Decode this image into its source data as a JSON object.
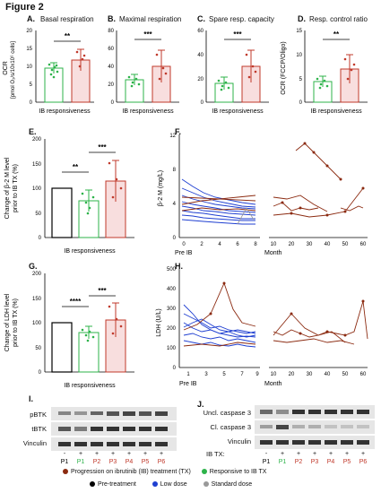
{
  "figure_title": "Figure 2",
  "colors": {
    "green": "#2db34a",
    "red": "#c0392b",
    "black": "#000000",
    "blue": "#1f3fd1",
    "gray": "#999999",
    "darkred": "#8b2a10"
  },
  "panels": {
    "A": {
      "letter": "A.",
      "title": "Basal respiration",
      "sig": "**"
    },
    "B": {
      "letter": "B.",
      "title": "Maximal respiration",
      "sig": "***"
    },
    "C": {
      "letter": "C.",
      "title": "Spare resp. capacity",
      "sig": "***"
    },
    "D": {
      "letter": "D.",
      "title": "Resp. control ratio",
      "sig": "**"
    },
    "E": {
      "letter": "E.",
      "sig1": "**",
      "sig2": "***"
    },
    "F": {
      "letter": "F."
    },
    "G": {
      "letter": "G.",
      "sig1": "****",
      "sig2": "***"
    },
    "H": {
      "letter": "H."
    },
    "I": {
      "letter": "I."
    },
    "J": {
      "letter": "J."
    }
  },
  "axis_labels": {
    "ocr_line1": "OCR",
    "ocr_line2": "[pmol O₂/s/10x10⁶ cells]",
    "ocr_ratio": "OCR (FCCP/Oligo)",
    "ib_responsiveness": "IB responsiveness",
    "b2m_change_1": "Change of β-2 M level",
    "b2m_change_2": "prior to IB TX (%)",
    "b2m_level": "β-2 M (mg/L)",
    "ldh_change_1": "Change of LDH level",
    "ldh_change_2": "prior to IB TX (%)",
    "ldh_level": "LDH (U/L)",
    "pre_ib": "Pre IB",
    "month": "Month"
  },
  "ticks": {
    "A_y": [
      "0",
      "5",
      "10",
      "15",
      "20"
    ],
    "B_y": [
      "0",
      "20",
      "40",
      "60",
      "80"
    ],
    "C_y": [
      "0",
      "20",
      "40",
      "60"
    ],
    "D_y": [
      "0",
      "5",
      "10",
      "15"
    ],
    "EG_y": [
      "0",
      "50",
      "100",
      "150",
      "200"
    ],
    "F_y": [
      "0",
      "4",
      "8",
      "12"
    ],
    "F_x_left": [
      "0",
      "2",
      "4",
      "6",
      "8"
    ],
    "F_x_right": [
      "10",
      "20",
      "30",
      "40",
      "50",
      "60"
    ],
    "H_y": [
      "0",
      "100",
      "200",
      "300",
      "400",
      "500"
    ],
    "H_x_left": [
      "1",
      "3",
      "5",
      "7",
      "9"
    ],
    "H_x_right": [
      "10",
      "20",
      "30",
      "40",
      "50",
      "60"
    ]
  },
  "blots": {
    "I_rows": [
      "pBTK",
      "tBTK",
      "Vinculin"
    ],
    "J_rows": [
      "Uncl. caspase 3",
      "Cl. caspase 3",
      "Vinculin"
    ],
    "ib_tx_label": "IB TX:",
    "I_tx": [
      "-",
      "+",
      "+",
      "+",
      "+",
      "+",
      "+"
    ],
    "J_tx": [
      "-",
      "+",
      "+",
      "+",
      "+",
      "+",
      "+"
    ],
    "lanes": [
      "P1",
      "P1",
      "P2",
      "P3",
      "P4",
      "P5",
      "P6"
    ]
  },
  "legend": {
    "progression": "Progression on ibrutinib (IB) treatment (TX)",
    "responsive": "Responsive to IB TX",
    "pretreatment": "Pre-treatment",
    "low_dose": "Low dose",
    "standard_dose": "Standard dose"
  },
  "chart_data": [
    {
      "panel": "A",
      "type": "bar",
      "title": "Basal respiration",
      "xlabel": "IB responsiveness",
      "ylabel": "OCR [pmol O₂/s/10x10⁶ cells]",
      "ylim": [
        0,
        20
      ],
      "categories": [
        "Responsive to IB TX",
        "Progression on IB TX"
      ],
      "values": [
        9.5,
        11.8
      ],
      "errors": [
        1.5,
        3.0
      ]
    },
    {
      "panel": "B",
      "type": "bar",
      "title": "Maximal respiration",
      "xlabel": "IB responsiveness",
      "ylim": [
        0,
        80
      ],
      "categories": [
        "Responsive to IB TX",
        "Progression on IB TX"
      ],
      "values": [
        25,
        40
      ],
      "errors": [
        6,
        18
      ]
    },
    {
      "panel": "C",
      "type": "bar",
      "title": "Spare resp. capacity",
      "xlabel": "IB responsiveness",
      "ylim": [
        0,
        60
      ],
      "categories": [
        "Responsive to IB TX",
        "Progression on IB TX"
      ],
      "values": [
        16,
        30
      ],
      "errors": [
        5,
        14
      ]
    },
    {
      "panel": "D",
      "type": "bar",
      "title": "Resp. control ratio",
      "xlabel": "IB responsiveness",
      "ylabel": "OCR (FCCP/Oligo)",
      "ylim": [
        0,
        15
      ],
      "categories": [
        "Responsive to IB TX",
        "Progression on IB TX"
      ],
      "values": [
        4.3,
        7.0
      ],
      "errors": [
        1.2,
        3.0
      ]
    },
    {
      "panel": "E",
      "type": "bar",
      "xlabel": "IB responsiveness",
      "ylabel": "Change of β-2 M level prior to IB TX (%)",
      "ylim": [
        0,
        200
      ],
      "categories": [
        "Pre-treatment",
        "Responsive to IB TX",
        "Progression on IB TX"
      ],
      "values": [
        100,
        75,
        115
      ],
      "errors": [
        0,
        22,
        42
      ]
    },
    {
      "panel": "G",
      "type": "bar",
      "xlabel": "IB responsiveness",
      "ylabel": "Change of LDH level prior to IB TX (%)",
      "ylim": [
        0,
        200
      ],
      "categories": [
        "Pre-treatment",
        "Responsive to IB TX",
        "Progression on IB TX"
      ],
      "values": [
        100,
        80,
        105
      ],
      "errors": [
        0,
        12,
        35
      ]
    },
    {
      "panel": "F",
      "type": "line",
      "ylabel": "β-2 M (mg/L)",
      "ylim": [
        0,
        12
      ],
      "series": [
        {
          "x": [
            0,
            2,
            4,
            6,
            8
          ],
          "y": [
            4.5,
            3.8,
            3.5,
            3.2,
            3.0
          ]
        },
        {
          "x": [
            0,
            2,
            4,
            6,
            8
          ],
          "y": [
            3.2,
            3.0,
            2.8,
            2.7,
            2.6
          ]
        },
        {
          "x": [
            0,
            2,
            4,
            6,
            8
          ],
          "y": [
            5.5,
            4.8,
            4.2,
            3.9,
            3.6
          ]
        },
        {
          "x": [
            0,
            2,
            4,
            6,
            8
          ],
          "y": [
            2.6,
            2.5,
            2.4,
            2.3,
            2.2
          ]
        },
        {
          "x": [
            0,
            8
          ],
          "y": [
            7.0,
            7.8
          ]
        }
      ]
    },
    {
      "panel": "H",
      "type": "line",
      "ylabel": "LDH (U/L)",
      "ylim": [
        0,
        500
      ],
      "series": [
        {
          "x": [
            1,
            3,
            5,
            7,
            9
          ],
          "y": [
            300,
            250,
            220,
            200,
            210
          ]
        },
        {
          "x": [
            1,
            3,
            5,
            7,
            9
          ],
          "y": [
            200,
            180,
            190,
            170,
            175
          ]
        },
        {
          "x": [
            1,
            3,
            5,
            7,
            9
          ],
          "y": [
            240,
            350,
            460,
            300,
            260
          ]
        }
      ]
    }
  ]
}
